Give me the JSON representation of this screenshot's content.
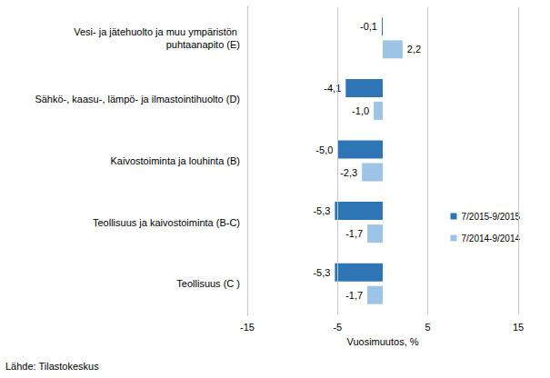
{
  "chart_data": {
    "type": "bar",
    "orientation": "horizontal",
    "categories": [
      "Vesi- ja jätehuolto ja muu ympäristön puhtaanapito (E)",
      "Sähkö-, kaasu-, lämpö- ja ilmastointihuolto (D)",
      "Kaivostoiminta ja louhinta (B)",
      "Teollisuus ja kaivostoiminta (B-C)",
      "Teollisuus (C )"
    ],
    "series": [
      {
        "name": "7/2015-9/2015",
        "color": "#2e75b6",
        "values": [
          -0.1,
          -4.1,
          -5.0,
          -5.3,
          -5.3
        ],
        "value_labels": [
          "-0,1",
          "-4,1",
          "-5,0",
          "-5,3",
          "-5,3"
        ]
      },
      {
        "name": "7/2014-9/2014",
        "color": "#9dc3e6",
        "values": [
          2.2,
          -1.0,
          -2.3,
          -1.7,
          -1.7
        ],
        "value_labels": [
          "2,2",
          "-1,0",
          "-2,3",
          "-1,7",
          "-1,7"
        ]
      }
    ],
    "xlabel": "Vuosimuutos, %",
    "xlim": [
      -15,
      15
    ],
    "xticks": [
      -15,
      -5,
      5,
      15
    ],
    "grid": true,
    "legend": "right",
    "data_labels": true,
    "annotations": [
      "Lähde: Tilastokeskus"
    ]
  }
}
